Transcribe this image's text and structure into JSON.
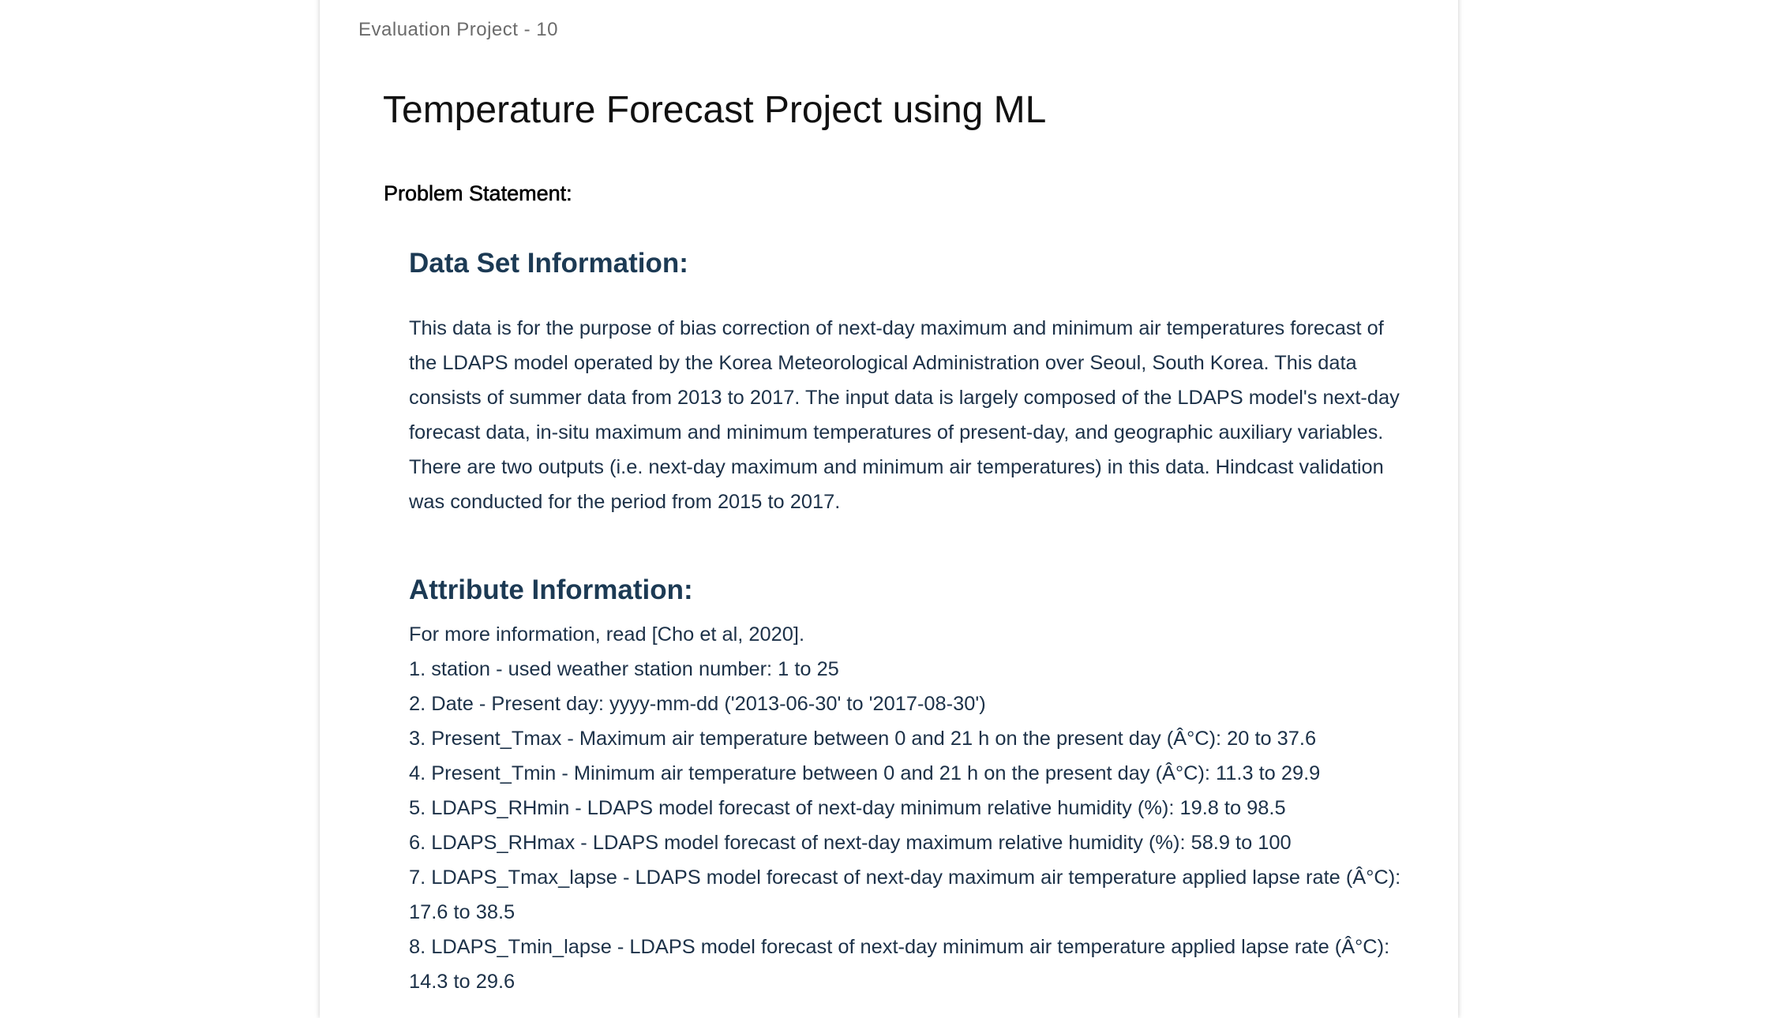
{
  "header": {
    "label": "Evaluation Project - 10"
  },
  "document": {
    "title": "Temperature Forecast Project using ML",
    "problem_statement_label": "Problem Statement:",
    "dataset_section": {
      "heading": "Data Set Information:",
      "body": "This data is for the purpose of bias correction of next-day maximum and minimum air temperatures forecast of the LDAPS model operated by the Korea Meteorological Administration over Seoul, South Korea. This data consists of summer data from 2013 to 2017. The input data is largely composed of the LDAPS model's next-day forecast data, in-situ maximum and minimum temperatures of present-day, and geographic auxiliary variables. There are two outputs (i.e. next-day maximum and minimum air temperatures) in this data. Hindcast validation was conducted for the period from 2015 to 2017."
    },
    "attribute_section": {
      "heading": "Attribute Information:",
      "intro": "For more information, read [Cho et al, 2020].",
      "items": [
        "1. station - used weather station number: 1 to 25",
        "2. Date - Present day: yyyy-mm-dd ('2013-06-30' to '2017-08-30')",
        "3. Present_Tmax - Maximum air temperature between 0 and 21 h on the present day (Â°C): 20 to 37.6",
        "4. Present_Tmin - Minimum air temperature between 0 and 21 h on the present day (Â°C): 11.3 to 29.9",
        "5. LDAPS_RHmin - LDAPS model forecast of next-day minimum relative humidity (%): 19.8 to 98.5",
        "6. LDAPS_RHmax - LDAPS model forecast of next-day maximum relative humidity (%): 58.9 to 100",
        "7. LDAPS_Tmax_lapse - LDAPS model forecast of next-day maximum air temperature applied lapse rate (Â°C): 17.6 to 38.5",
        "8. LDAPS_Tmin_lapse - LDAPS model forecast of next-day minimum air temperature applied lapse rate (Â°C): 14.3 to 29.6"
      ]
    }
  },
  "colors": {
    "heading": "#1c3a54",
    "body_text": "#1c3148",
    "label_gray": "#6b6b6b"
  }
}
